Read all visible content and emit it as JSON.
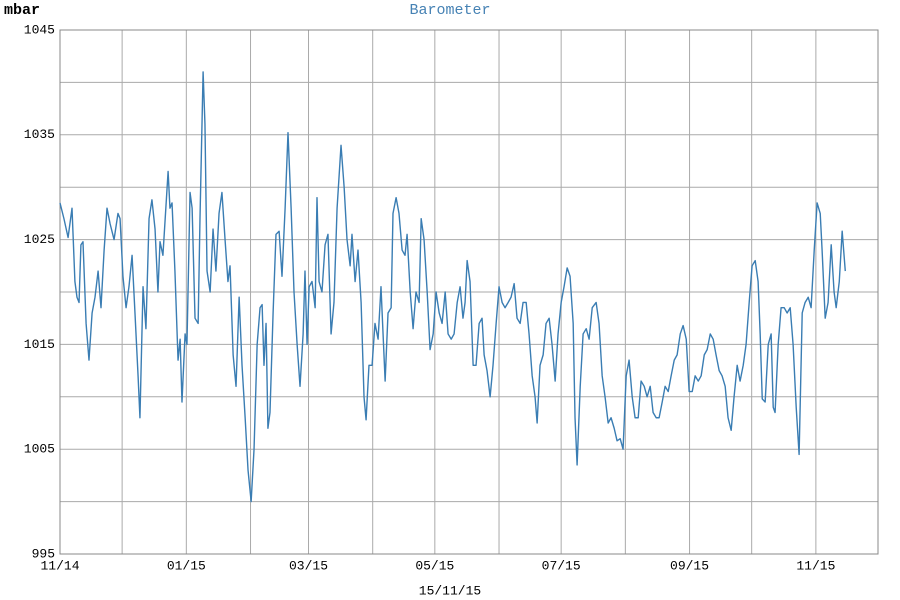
{
  "chart_data": {
    "type": "line",
    "title": "Barometer",
    "ylabel": "mbar",
    "xlabel": "15/11/15",
    "color": "#3a7db3",
    "grid": true,
    "xlim": [
      0,
      395
    ],
    "ylim": [
      995,
      1045
    ],
    "yticks": [
      995,
      1005,
      1015,
      1025,
      1035,
      1045
    ],
    "yticks_minor": [
      1000,
      1010,
      1020,
      1030,
      1040
    ],
    "xticks": [
      {
        "value": 0,
        "label": "11/14"
      },
      {
        "value": 61,
        "label": "01/15"
      },
      {
        "value": 120,
        "label": "03/15"
      },
      {
        "value": 181,
        "label": "05/15"
      },
      {
        "value": 242,
        "label": "07/15"
      },
      {
        "value": 304,
        "label": "09/15"
      },
      {
        "value": 365,
        "label": "11/15"
      }
    ],
    "xticks_minor": [
      30,
      92,
      151,
      212,
      273,
      334,
      395
    ],
    "x": [
      0,
      1.9,
      3.9,
      5.8,
      7.2,
      8.2,
      9.2,
      10.1,
      11.1,
      12.6,
      14.0,
      15.5,
      16.9,
      18.4,
      19.8,
      21.3,
      22.7,
      24.2,
      26.1,
      28.0,
      29.0,
      30.4,
      31.9,
      33.3,
      34.8,
      36.2,
      37.7,
      38.6,
      40.1,
      41.5,
      43.0,
      44.4,
      45.9,
      47.3,
      48.3,
      49.7,
      52.2,
      53.1,
      54.1,
      55.5,
      57.0,
      58.0,
      58.9,
      60.4,
      61.3,
      62.8,
      63.8,
      65.2,
      66.7,
      67.6,
      69.1,
      70.0,
      71.0,
      72.5,
      73.9,
      75.3,
      76.8,
      78.2,
      79.7,
      81.1,
      82.1,
      83.6,
      85.0,
      86.5,
      87.9,
      89.4,
      90.8,
      92.3,
      93.7,
      95.2,
      96.6,
      97.6,
      98.5,
      99.5,
      100.4,
      101.4,
      102.9,
      104.3,
      105.8,
      107.2,
      108.7,
      110.1,
      111.6,
      113.0,
      114.5,
      115.9,
      117.4,
      118.3,
      119.3,
      120.3,
      121.7,
      123.2,
      124.1,
      125.1,
      126.5,
      128.0,
      129.4,
      130.9,
      132.3,
      133.8,
      135.7,
      137.2,
      138.6,
      140.1,
      141.0,
      142.5,
      143.9,
      145.4,
      146.8,
      147.8,
      149.2,
      150.7,
      152.1,
      153.6,
      155.0,
      156.0,
      157.0,
      158.4,
      159.9,
      160.8,
      162.3,
      163.7,
      165.2,
      166.6,
      167.6,
      169.1,
      170.5,
      171.9,
      173.4,
      174.4,
      175.8,
      177.3,
      178.7,
      180.2,
      181.6,
      183.1,
      184.5,
      186.0,
      187.4,
      188.9,
      190.3,
      191.8,
      193.2,
      194.6,
      195.6,
      196.6,
      198.0,
      199.5,
      200.9,
      202.4,
      203.8,
      204.8,
      206.2,
      207.7,
      209.1,
      210.6,
      212.0,
      213.5,
      214.9,
      216.4,
      217.8,
      219.3,
      220.7,
      222.2,
      223.6,
      225.1,
      226.5,
      228.0,
      229.4,
      230.4,
      231.8,
      233.3,
      234.7,
      236.2,
      237.6,
      239.1,
      240.5,
      242.0,
      243.4,
      244.9,
      246.3,
      247.8,
      248.7,
      249.7,
      251.2,
      252.6,
      254.1,
      255.5,
      257.0,
      258.9,
      260.3,
      261.8,
      263.2,
      264.7,
      266.1,
      267.6,
      269.0,
      270.5,
      271.9,
      273.4,
      274.8,
      276.3,
      277.7,
      279.2,
      280.6,
      282.1,
      283.5,
      285.0,
      286.4,
      287.9,
      289.3,
      290.8,
      292.2,
      293.7,
      295.1,
      296.6,
      298.0,
      299.5,
      300.9,
      302.4,
      303.8,
      305.3,
      306.7,
      308.2,
      309.6,
      311.1,
      312.5,
      314.0,
      315.4,
      316.8,
      318.3,
      319.7,
      321.2,
      322.6,
      324.1,
      325.5,
      327.0,
      328.4,
      329.9,
      331.3,
      332.8,
      334.2,
      335.7,
      337.1,
      338.1,
      339.1,
      340.5,
      342.0,
      343.4,
      344.4,
      345.3,
      346.8,
      348.2,
      349.7,
      351.1,
      352.6,
      354.0,
      355.5,
      356.9,
      358.4,
      359.8,
      361.3,
      362.7,
      364.2,
      365.6,
      367.1,
      368.0,
      369.5,
      370.9,
      372.4,
      373.8,
      374.8,
      376.3,
      377.7,
      379.2
    ],
    "values": [
      1028.5,
      1027,
      1025.2,
      1028,
      1021,
      1019.5,
      1019,
      1024.5,
      1024.8,
      1017,
      1013.5,
      1018,
      1019.5,
      1022,
      1018.5,
      1024,
      1028,
      1026.5,
      1025,
      1027.5,
      1027,
      1021.5,
      1018.5,
      1020.5,
      1023.5,
      1018,
      1012,
      1008,
      1020.5,
      1016.5,
      1027,
      1028.8,
      1026,
      1020,
      1024.8,
      1023.5,
      1031.5,
      1028,
      1028.5,
      1022,
      1013.5,
      1015.5,
      1009.5,
      1016,
      1015,
      1029.5,
      1028,
      1017.5,
      1017,
      1027,
      1041,
      1036,
      1022,
      1020,
      1026,
      1022,
      1027.5,
      1029.5,
      1025,
      1021,
      1022.5,
      1014,
      1011,
      1019.5,
      1013,
      1008,
      1003,
      1000,
      1005,
      1015,
      1018.5,
      1018.8,
      1013,
      1017,
      1007,
      1008.5,
      1018,
      1025.5,
      1025.8,
      1021.5,
      1028,
      1035.2,
      1028,
      1020,
      1015,
      1011,
      1016,
      1022,
      1015,
      1020.5,
      1021,
      1018.5,
      1029,
      1021,
      1020,
      1024.5,
      1025.5,
      1016,
      1019,
      1028,
      1034,
      1030,
      1025,
      1022.5,
      1025.5,
      1021,
      1024,
      1019,
      1010,
      1007.8,
      1013,
      1013,
      1017,
      1015.5,
      1020.5,
      1016,
      1011.5,
      1018,
      1018.5,
      1027.5,
      1029,
      1027.5,
      1024,
      1023.5,
      1025.5,
      1020,
      1016.5,
      1020,
      1019,
      1027,
      1025,
      1020,
      1014.5,
      1016,
      1020,
      1018,
      1017,
      1020,
      1016,
      1015.5,
      1016,
      1019,
      1020.5,
      1017.5,
      1019,
      1023,
      1021,
      1013,
      1013,
      1017,
      1017.5,
      1014,
      1012.5,
      1010,
      1013,
      1017,
      1020.5,
      1019,
      1018.5,
      1019,
      1019.5,
      1020.8,
      1017.5,
      1017,
      1019,
      1019,
      1016,
      1012,
      1010,
      1007.5,
      1013,
      1014,
      1017,
      1017.5,
      1015,
      1011.5,
      1016,
      1019,
      1020.5,
      1022.3,
      1021.5,
      1017,
      1008,
      1003.5,
      1011,
      1016,
      1016.5,
      1015.5,
      1018.5,
      1019,
      1017,
      1012,
      1010,
      1007.5,
      1008,
      1007,
      1005.8,
      1006,
      1005,
      1012,
      1013.5,
      1010,
      1008,
      1008,
      1011.5,
      1011,
      1010,
      1011,
      1008.5,
      1008,
      1008,
      1009.5,
      1011,
      1010.5,
      1012,
      1013.5,
      1014,
      1016,
      1016.8,
      1015.5,
      1010.5,
      1010.5,
      1012,
      1011.5,
      1012,
      1014,
      1014.5,
      1016,
      1015.5,
      1014,
      1012.5,
      1012,
      1011,
      1008,
      1006.8,
      1010,
      1013,
      1011.5,
      1013,
      1015,
      1019,
      1022.5,
      1023,
      1021,
      1016,
      1009.8,
      1009.5,
      1015,
      1016,
      1009,
      1008.5,
      1015,
      1018.5,
      1018.5,
      1018,
      1018.5,
      1015,
      1009,
      1004.5,
      1018,
      1019,
      1019.5,
      1018.5,
      1024,
      1028.5,
      1027.5,
      1024,
      1017.5,
      1019,
      1024.5,
      1020,
      1018.5,
      1021,
      1025.8,
      1022
    ]
  }
}
